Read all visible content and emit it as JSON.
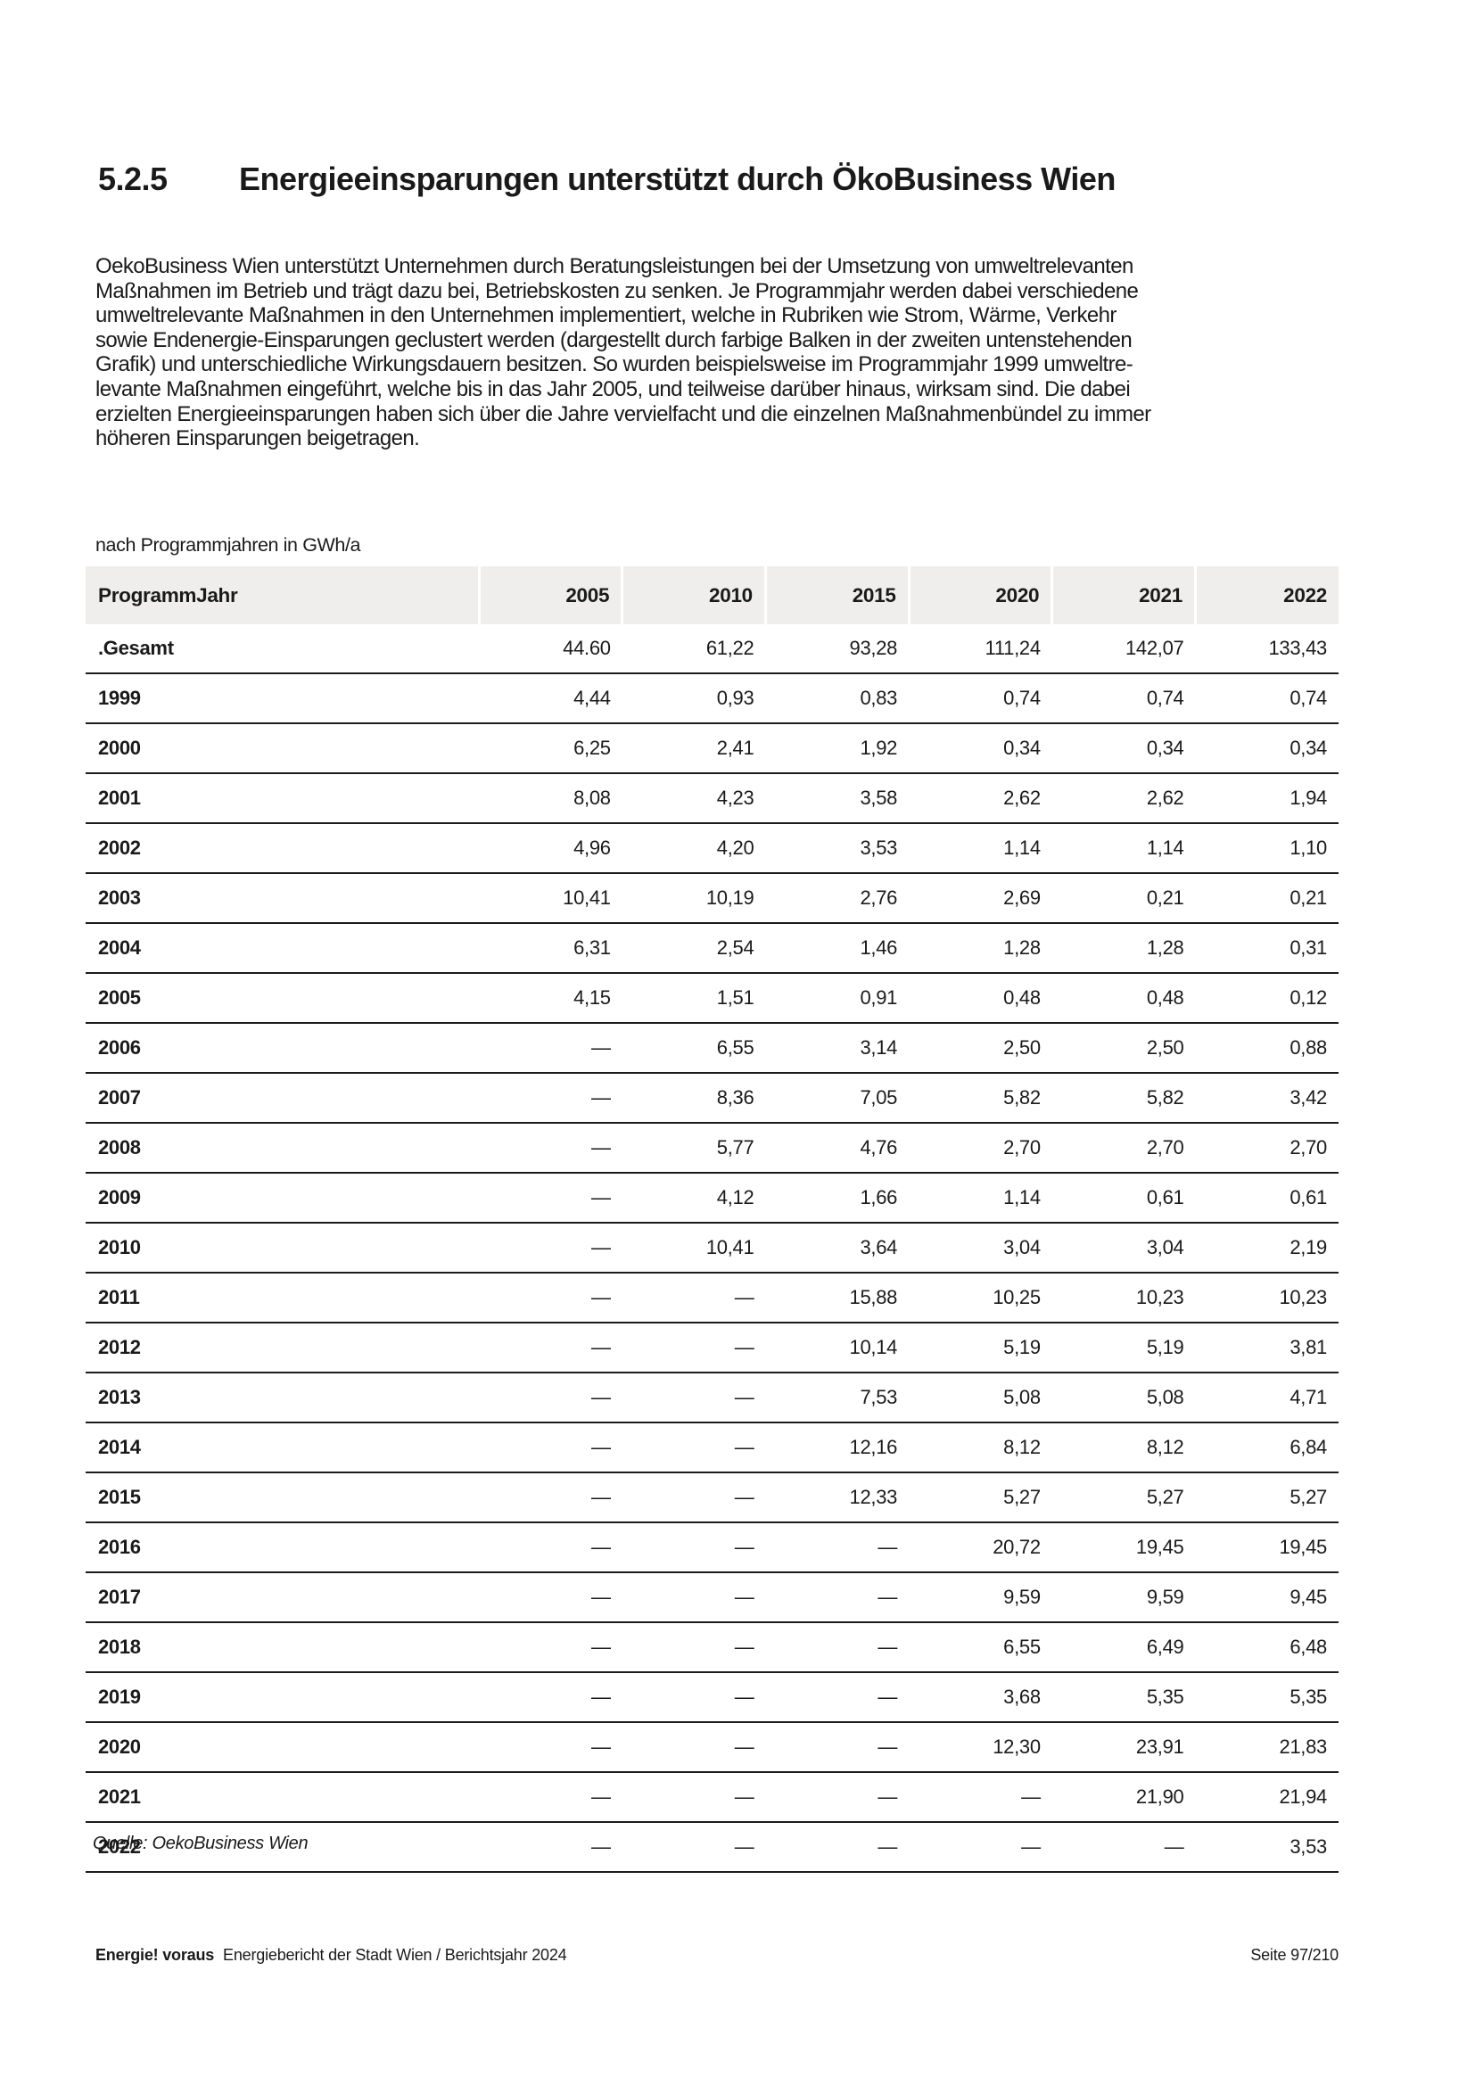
{
  "page": {
    "section_number": "5.2.5",
    "title": "Energieeinsparungen unterstützt durch ÖkoBusiness Wien",
    "paragraph_lines": [
      "OekoBusiness Wien unterstützt Unternehmen durch Beratungsleistungen bei der Umsetzung von umweltrelevanten",
      "Maßnahmen im Betrieb und trägt dazu bei, Betriebskosten zu senken. Je Programmjahr werden dabei verschiedene",
      "umweltrelevante Maßnahmen in den Unternehmen implementiert, welche in Rubriken wie Strom, Wärme, Verkehr",
      "sowie Endenergie-Einsparungen geclustert werden (dargestellt durch farbige Balken in der zweiten untenstehenden",
      "Grafik) und unterschiedliche Wirkungsdauern besitzen. So wurden beispielsweise im Programmjahr 1999 umweltre-",
      "levante Maßnahmen eingeführt, welche bis in das Jahr 2005, und teilweise darüber hinaus, wirksam sind. Die dabei",
      "erzielten Energieeinsparungen haben sich über die Jahre vervielfacht und die einzelnen Maßnahmenbündel zu immer",
      "höheren Einsparungen beigetragen."
    ],
    "table_caption": "nach Programmjahren in GWh/a",
    "source": "Quelle: OekoBusiness Wien",
    "footer": {
      "brand": "Energie! voraus",
      "doc_title": "Energiebericht der Stadt Wien / Berichtsjahr 2024",
      "page_number": "Seite 97/210"
    }
  },
  "table": {
    "columns": [
      "ProgrammJahr",
      "2005",
      "2010",
      "2015",
      "2020",
      "2021",
      "2022"
    ],
    "rows": [
      {
        "label": ".Gesamt",
        "values": [
          "44.60",
          "61,22",
          "93,28",
          "111,24",
          "142,07",
          "133,43"
        ]
      },
      {
        "label": "1999",
        "values": [
          "4,44",
          "0,93",
          "0,83",
          "0,74",
          "0,74",
          "0,74"
        ]
      },
      {
        "label": "2000",
        "values": [
          "6,25",
          "2,41",
          "1,92",
          "0,34",
          "0,34",
          "0,34"
        ]
      },
      {
        "label": "2001",
        "values": [
          "8,08",
          "4,23",
          "3,58",
          "2,62",
          "2,62",
          "1,94"
        ]
      },
      {
        "label": "2002",
        "values": [
          "4,96",
          "4,20",
          "3,53",
          "1,14",
          "1,14",
          "1,10"
        ]
      },
      {
        "label": "2003",
        "values": [
          "10,41",
          "10,19",
          "2,76",
          "2,69",
          "0,21",
          "0,21"
        ]
      },
      {
        "label": "2004",
        "values": [
          "6,31",
          "2,54",
          "1,46",
          "1,28",
          "1,28",
          "0,31"
        ]
      },
      {
        "label": "2005",
        "values": [
          "4,15",
          "1,51",
          "0,91",
          "0,48",
          "0,48",
          "0,12"
        ]
      },
      {
        "label": "2006",
        "values": [
          "—",
          "6,55",
          "3,14",
          "2,50",
          "2,50",
          "0,88"
        ]
      },
      {
        "label": "2007",
        "values": [
          "—",
          "8,36",
          "7,05",
          "5,82",
          "5,82",
          "3,42"
        ]
      },
      {
        "label": "2008",
        "values": [
          "—",
          "5,77",
          "4,76",
          "2,70",
          "2,70",
          "2,70"
        ]
      },
      {
        "label": "2009",
        "values": [
          "—",
          "4,12",
          "1,66",
          "1,14",
          "0,61",
          "0,61"
        ]
      },
      {
        "label": "2010",
        "values": [
          "—",
          "10,41",
          "3,64",
          "3,04",
          "3,04",
          "2,19"
        ]
      },
      {
        "label": "2011",
        "values": [
          "—",
          "—",
          "15,88",
          "10,25",
          "10,23",
          "10,23"
        ]
      },
      {
        "label": "2012",
        "values": [
          "—",
          "—",
          "10,14",
          "5,19",
          "5,19",
          "3,81"
        ]
      },
      {
        "label": "2013",
        "values": [
          "—",
          "—",
          "7,53",
          "5,08",
          "5,08",
          "4,71"
        ]
      },
      {
        "label": "2014",
        "values": [
          "—",
          "—",
          "12,16",
          "8,12",
          "8,12",
          "6,84"
        ]
      },
      {
        "label": "2015",
        "values": [
          "—",
          "—",
          "12,33",
          "5,27",
          "5,27",
          "5,27"
        ]
      },
      {
        "label": "2016",
        "values": [
          "—",
          "—",
          "—",
          "20,72",
          "19,45",
          "19,45"
        ]
      },
      {
        "label": "2017",
        "values": [
          "—",
          "—",
          "—",
          "9,59",
          "9,59",
          "9,45"
        ]
      },
      {
        "label": "2018",
        "values": [
          "—",
          "—",
          "—",
          "6,55",
          "6,49",
          "6,48"
        ]
      },
      {
        "label": "2019",
        "values": [
          "—",
          "—",
          "—",
          "3,68",
          "5,35",
          "5,35"
        ]
      },
      {
        "label": "2020",
        "values": [
          "—",
          "—",
          "—",
          "12,30",
          "23,91",
          "21,83"
        ]
      },
      {
        "label": "2021",
        "values": [
          "—",
          "—",
          "—",
          "—",
          "21,90",
          "21,94"
        ]
      },
      {
        "label": "2022",
        "values": [
          "—",
          "—",
          "—",
          "—",
          "—",
          "3,53"
        ]
      }
    ]
  },
  "colors": {
    "header_background": "#efeeec",
    "row_border": "#1b1b1b",
    "text": "#1a1a1a",
    "page_background": "#ffffff"
  }
}
